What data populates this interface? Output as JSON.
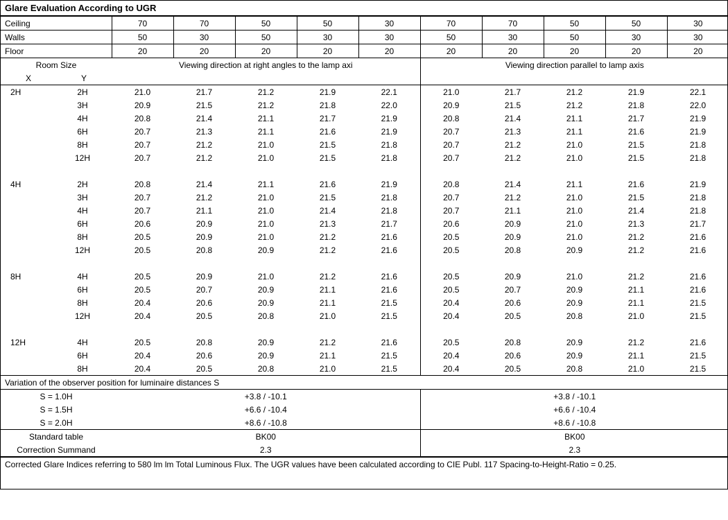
{
  "title": "Glare Evaluation According to UGR",
  "reflectance_rows": [
    {
      "label": "Ceiling",
      "left": [
        "70",
        "70",
        "50",
        "50",
        "30"
      ],
      "right": [
        "70",
        "70",
        "50",
        "50",
        "30"
      ]
    },
    {
      "label": "Walls",
      "left": [
        "50",
        "30",
        "50",
        "30",
        "30"
      ],
      "right": [
        "50",
        "30",
        "50",
        "30",
        "30"
      ]
    },
    {
      "label": "Floor",
      "left": [
        "20",
        "20",
        "20",
        "20",
        "20"
      ],
      "right": [
        "20",
        "20",
        "20",
        "20",
        "20"
      ]
    }
  ],
  "room_size_hdr": "Room Size",
  "x_hdr": "X",
  "y_hdr": "Y",
  "left_view_hdr": "Viewing direction at right angles to the lamp axi",
  "right_view_hdr": "Viewing direction parallel to lamp axis",
  "groups": [
    {
      "x": "2H",
      "rows": [
        {
          "y": "2H",
          "left": [
            "21.0",
            "21.7",
            "21.2",
            "21.9",
            "22.1"
          ],
          "right": [
            "21.0",
            "21.7",
            "21.2",
            "21.9",
            "22.1"
          ]
        },
        {
          "y": "3H",
          "left": [
            "20.9",
            "21.5",
            "21.2",
            "21.8",
            "22.0"
          ],
          "right": [
            "20.9",
            "21.5",
            "21.2",
            "21.8",
            "22.0"
          ]
        },
        {
          "y": "4H",
          "left": [
            "20.8",
            "21.4",
            "21.1",
            "21.7",
            "21.9"
          ],
          "right": [
            "20.8",
            "21.4",
            "21.1",
            "21.7",
            "21.9"
          ]
        },
        {
          "y": "6H",
          "left": [
            "20.7",
            "21.3",
            "21.1",
            "21.6",
            "21.9"
          ],
          "right": [
            "20.7",
            "21.3",
            "21.1",
            "21.6",
            "21.9"
          ]
        },
        {
          "y": "8H",
          "left": [
            "20.7",
            "21.2",
            "21.0",
            "21.5",
            "21.8"
          ],
          "right": [
            "20.7",
            "21.2",
            "21.0",
            "21.5",
            "21.8"
          ]
        },
        {
          "y": "12H",
          "left": [
            "20.7",
            "21.2",
            "21.0",
            "21.5",
            "21.8"
          ],
          "right": [
            "20.7",
            "21.2",
            "21.0",
            "21.5",
            "21.8"
          ]
        }
      ]
    },
    {
      "x": "4H",
      "rows": [
        {
          "y": "2H",
          "left": [
            "20.8",
            "21.4",
            "21.1",
            "21.6",
            "21.9"
          ],
          "right": [
            "20.8",
            "21.4",
            "21.1",
            "21.6",
            "21.9"
          ]
        },
        {
          "y": "3H",
          "left": [
            "20.7",
            "21.2",
            "21.0",
            "21.5",
            "21.8"
          ],
          "right": [
            "20.7",
            "21.2",
            "21.0",
            "21.5",
            "21.8"
          ]
        },
        {
          "y": "4H",
          "left": [
            "20.7",
            "21.1",
            "21.0",
            "21.4",
            "21.8"
          ],
          "right": [
            "20.7",
            "21.1",
            "21.0",
            "21.4",
            "21.8"
          ]
        },
        {
          "y": "6H",
          "left": [
            "20.6",
            "20.9",
            "21.0",
            "21.3",
            "21.7"
          ],
          "right": [
            "20.6",
            "20.9",
            "21.0",
            "21.3",
            "21.7"
          ]
        },
        {
          "y": "8H",
          "left": [
            "20.5",
            "20.9",
            "21.0",
            "21.2",
            "21.6"
          ],
          "right": [
            "20.5",
            "20.9",
            "21.0",
            "21.2",
            "21.6"
          ]
        },
        {
          "y": "12H",
          "left": [
            "20.5",
            "20.8",
            "20.9",
            "21.2",
            "21.6"
          ],
          "right": [
            "20.5",
            "20.8",
            "20.9",
            "21.2",
            "21.6"
          ]
        }
      ]
    },
    {
      "x": "8H",
      "rows": [
        {
          "y": "4H",
          "left": [
            "20.5",
            "20.9",
            "21.0",
            "21.2",
            "21.6"
          ],
          "right": [
            "20.5",
            "20.9",
            "21.0",
            "21.2",
            "21.6"
          ]
        },
        {
          "y": "6H",
          "left": [
            "20.5",
            "20.7",
            "20.9",
            "21.1",
            "21.6"
          ],
          "right": [
            "20.5",
            "20.7",
            "20.9",
            "21.1",
            "21.6"
          ]
        },
        {
          "y": "8H",
          "left": [
            "20.4",
            "20.6",
            "20.9",
            "21.1",
            "21.5"
          ],
          "right": [
            "20.4",
            "20.6",
            "20.9",
            "21.1",
            "21.5"
          ]
        },
        {
          "y": "12H",
          "left": [
            "20.4",
            "20.5",
            "20.8",
            "21.0",
            "21.5"
          ],
          "right": [
            "20.4",
            "20.5",
            "20.8",
            "21.0",
            "21.5"
          ]
        }
      ]
    },
    {
      "x": "12H",
      "rows": [
        {
          "y": "4H",
          "left": [
            "20.5",
            "20.8",
            "20.9",
            "21.2",
            "21.6"
          ],
          "right": [
            "20.5",
            "20.8",
            "20.9",
            "21.2",
            "21.6"
          ]
        },
        {
          "y": "6H",
          "left": [
            "20.4",
            "20.6",
            "20.9",
            "21.1",
            "21.5"
          ],
          "right": [
            "20.4",
            "20.6",
            "20.9",
            "21.1",
            "21.5"
          ]
        },
        {
          "y": "8H",
          "left": [
            "20.4",
            "20.5",
            "20.8",
            "21.0",
            "21.5"
          ],
          "right": [
            "20.4",
            "20.5",
            "20.8",
            "21.0",
            "21.5"
          ]
        }
      ]
    }
  ],
  "variation_title": "Variation of the observer position for luminaire distances S",
  "variation_rows": [
    {
      "label": "S = 1.0H",
      "left": "+3.8 / -10.1",
      "right": "+3.8 / -10.1"
    },
    {
      "label": "S = 1.5H",
      "left": "+6.6 / -10.4",
      "right": "+6.6 / -10.4"
    },
    {
      "label": "S = 2.0H",
      "left": "+8.6 / -10.8",
      "right": "+8.6 / -10.8"
    }
  ],
  "std_table_label": "Standard table",
  "std_table_left": "BK00",
  "std_table_right": "BK00",
  "corr_label": "Correction Summand",
  "corr_left": "2.3",
  "corr_right": "2.3",
  "footnote": "Corrected Glare Indices referring to 580 lm lm Total Luminous Flux. The UGR values have been calculated according to CIE Publ. 117    Spacing-to-Height-Ratio = 0.25."
}
